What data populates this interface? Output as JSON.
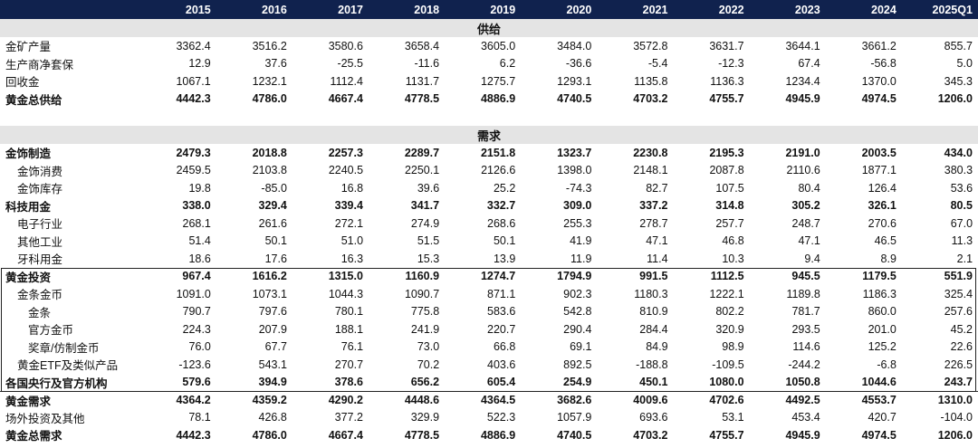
{
  "years": [
    "2015",
    "2016",
    "2017",
    "2018",
    "2019",
    "2020",
    "2021",
    "2022",
    "2023",
    "2024",
    "2025Q1"
  ],
  "sections": {
    "supply": "供给",
    "demand": "需求"
  },
  "supply_rows": [
    {
      "label": "金矿产量",
      "values": [
        "3362.4",
        "3516.2",
        "3580.6",
        "3658.4",
        "3605.0",
        "3484.0",
        "3572.8",
        "3631.7",
        "3644.1",
        "3661.2",
        "855.7"
      ],
      "bold": false,
      "indent": 0
    },
    {
      "label": "生产商净套保",
      "values": [
        "12.9",
        "37.6",
        "-25.5",
        "-11.6",
        "6.2",
        "-36.6",
        "-5.4",
        "-12.3",
        "67.4",
        "-56.8",
        "5.0"
      ],
      "bold": false,
      "indent": 0
    },
    {
      "label": "回收金",
      "values": [
        "1067.1",
        "1232.1",
        "1112.4",
        "1131.7",
        "1275.7",
        "1293.1",
        "1135.8",
        "1136.3",
        "1234.4",
        "1370.0",
        "345.3"
      ],
      "bold": false,
      "indent": 0
    },
    {
      "label": "黄金总供给",
      "values": [
        "4442.3",
        "4786.0",
        "4667.4",
        "4778.5",
        "4886.9",
        "4740.5",
        "4703.2",
        "4755.7",
        "4945.9",
        "4974.5",
        "1206.0"
      ],
      "bold": true,
      "indent": 0
    }
  ],
  "demand_rows": [
    {
      "label": "金饰制造",
      "values": [
        "2479.3",
        "2018.8",
        "2257.3",
        "2289.7",
        "2151.8",
        "1323.7",
        "2230.8",
        "2195.3",
        "2191.0",
        "2003.5",
        "434.0"
      ],
      "bold": true,
      "indent": 0
    },
    {
      "label": "金饰消费",
      "values": [
        "2459.5",
        "2103.8",
        "2240.5",
        "2250.1",
        "2126.6",
        "1398.0",
        "2148.1",
        "2087.8",
        "2110.6",
        "1877.1",
        "380.3"
      ],
      "bold": false,
      "indent": 1
    },
    {
      "label": "金饰库存",
      "values": [
        "19.8",
        "-85.0",
        "16.8",
        "39.6",
        "25.2",
        "-74.3",
        "82.7",
        "107.5",
        "80.4",
        "126.4",
        "53.6"
      ],
      "bold": false,
      "indent": 1
    },
    {
      "label": "科技用金",
      "values": [
        "338.0",
        "329.4",
        "339.4",
        "341.7",
        "332.7",
        "309.0",
        "337.2",
        "314.8",
        "305.2",
        "326.1",
        "80.5"
      ],
      "bold": true,
      "indent": 0
    },
    {
      "label": "电子行业",
      "values": [
        "268.1",
        "261.6",
        "272.1",
        "274.9",
        "268.6",
        "255.3",
        "278.7",
        "257.7",
        "248.7",
        "270.6",
        "67.0"
      ],
      "bold": false,
      "indent": 1
    },
    {
      "label": "其他工业",
      "values": [
        "51.4",
        "50.1",
        "51.0",
        "51.5",
        "50.1",
        "41.9",
        "47.1",
        "46.8",
        "47.1",
        "46.5",
        "11.3"
      ],
      "bold": false,
      "indent": 1
    },
    {
      "label": "牙科用金",
      "values": [
        "18.6",
        "17.6",
        "16.3",
        "15.3",
        "13.9",
        "11.9",
        "11.4",
        "10.3",
        "9.4",
        "8.9",
        "2.1"
      ],
      "bold": false,
      "indent": 1
    },
    {
      "label": "黄金投资",
      "values": [
        "967.4",
        "1616.2",
        "1315.0",
        "1160.9",
        "1274.7",
        "1794.9",
        "991.5",
        "1112.5",
        "945.5",
        "1179.5",
        "551.9"
      ],
      "bold": true,
      "indent": 0,
      "box_start": true
    },
    {
      "label": "金条金币",
      "values": [
        "1091.0",
        "1073.1",
        "1044.3",
        "1090.7",
        "871.1",
        "902.3",
        "1180.3",
        "1222.1",
        "1189.8",
        "1186.3",
        "325.4"
      ],
      "bold": false,
      "indent": 1
    },
    {
      "label": "金条",
      "values": [
        "790.7",
        "797.6",
        "780.1",
        "775.8",
        "583.6",
        "542.8",
        "810.9",
        "802.2",
        "781.7",
        "860.0",
        "257.6"
      ],
      "bold": false,
      "indent": 2
    },
    {
      "label": "官方金币",
      "values": [
        "224.3",
        "207.9",
        "188.1",
        "241.9",
        "220.7",
        "290.4",
        "284.4",
        "320.9",
        "293.5",
        "201.0",
        "45.2"
      ],
      "bold": false,
      "indent": 2
    },
    {
      "label": "奖章/仿制金币",
      "values": [
        "76.0",
        "67.7",
        "76.1",
        "73.0",
        "66.8",
        "69.1",
        "84.9",
        "98.9",
        "114.6",
        "125.2",
        "22.6"
      ],
      "bold": false,
      "indent": 2
    },
    {
      "label": "黄金ETF及类似产品",
      "values": [
        "-123.6",
        "543.1",
        "270.7",
        "70.2",
        "403.6",
        "892.5",
        "-188.8",
        "-109.5",
        "-244.2",
        "-6.8",
        "226.5"
      ],
      "bold": false,
      "indent": 1
    },
    {
      "label": "各国央行及官方机构",
      "values": [
        "579.6",
        "394.9",
        "378.6",
        "656.2",
        "605.4",
        "254.9",
        "450.1",
        "1080.0",
        "1050.8",
        "1044.6",
        "243.7"
      ],
      "bold": true,
      "indent": 0,
      "box_end": true
    },
    {
      "label": "黄金需求",
      "values": [
        "4364.2",
        "4359.2",
        "4290.2",
        "4448.6",
        "4364.5",
        "3682.6",
        "4009.6",
        "4702.6",
        "4492.5",
        "4553.7",
        "1310.0"
      ],
      "bold": true,
      "indent": 0
    },
    {
      "label": "场外投资及其他",
      "values": [
        "78.1",
        "426.8",
        "377.2",
        "329.9",
        "522.3",
        "1057.9",
        "693.6",
        "53.1",
        "453.4",
        "420.7",
        "-104.0"
      ],
      "bold": false,
      "indent": 0
    },
    {
      "label": "黄金总需求",
      "values": [
        "4442.3",
        "4786.0",
        "4667.4",
        "4778.5",
        "4886.9",
        "4740.5",
        "4703.2",
        "4755.7",
        "4945.9",
        "4974.5",
        "1206.0"
      ],
      "bold": true,
      "indent": 0
    }
  ]
}
